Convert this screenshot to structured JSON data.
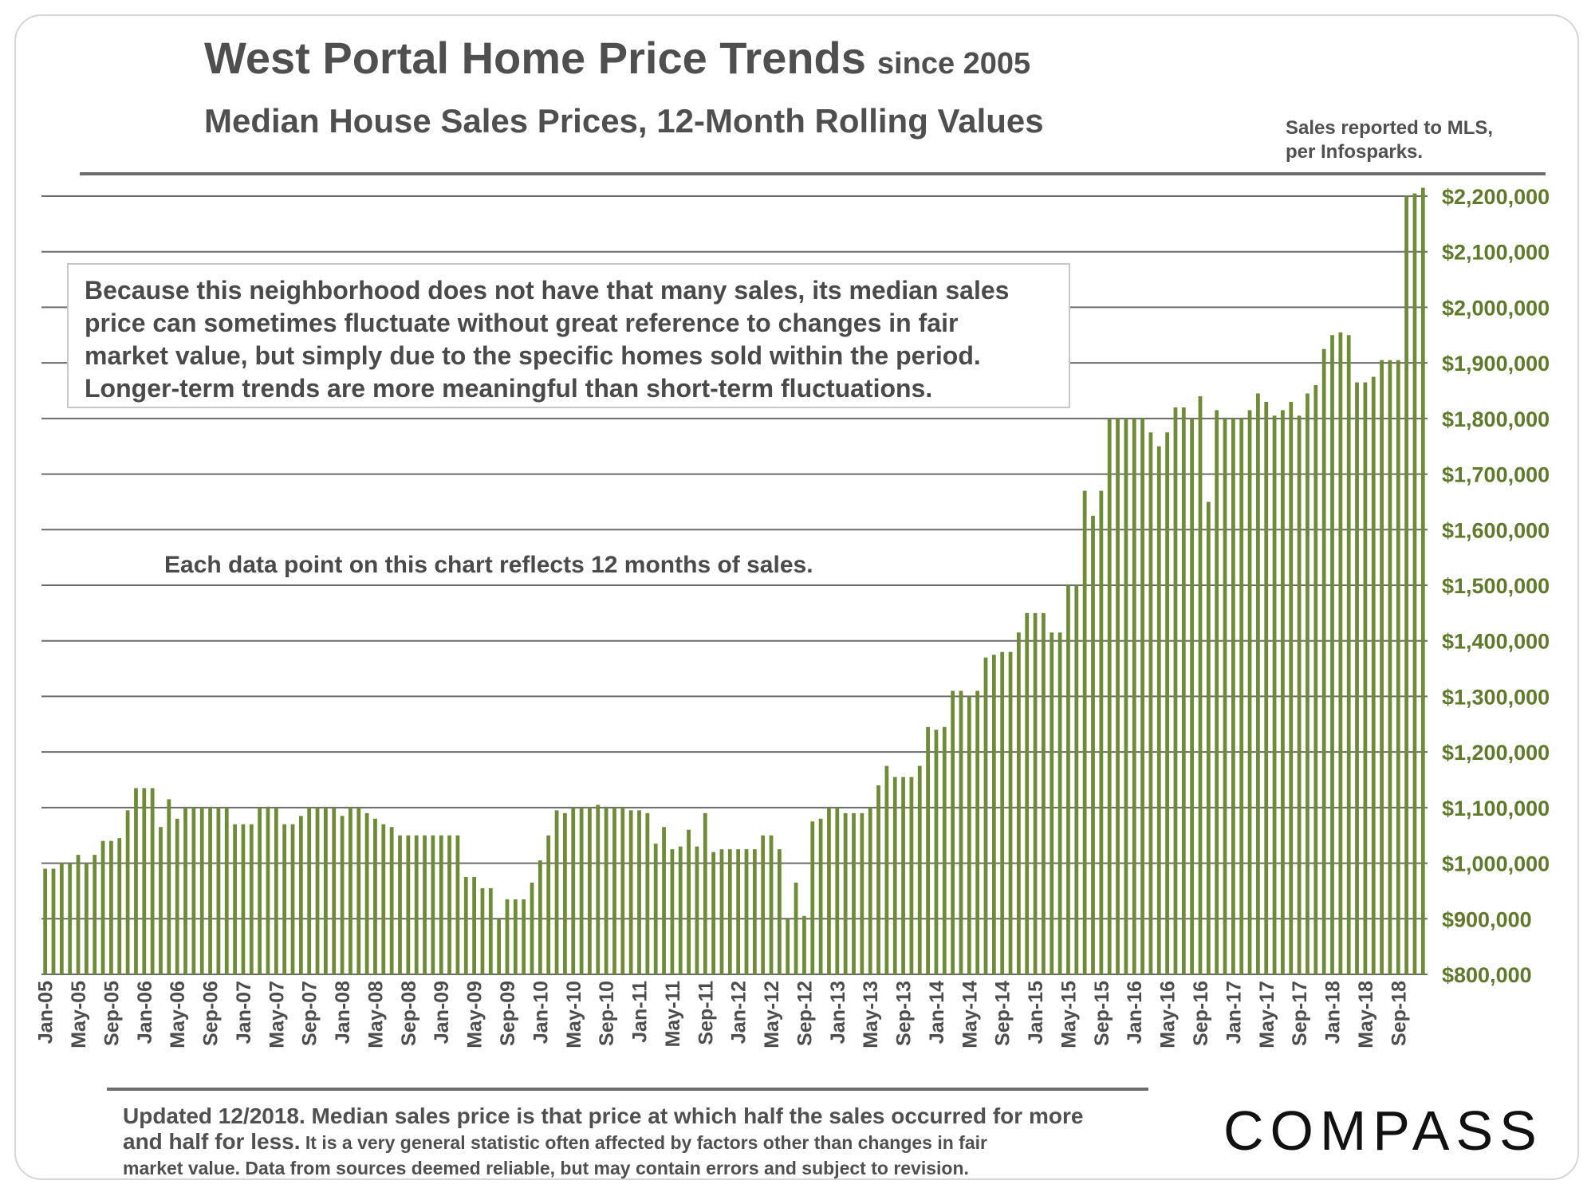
{
  "header": {
    "title": "West Portal Home Price Trends",
    "title_suffix": "since 2005",
    "subtitle": "Median House Sales Prices, 12-Month Rolling Values",
    "source_line1": "Sales reported to MLS,",
    "source_line2": "per Infosparks."
  },
  "notes": {
    "box_lines": [
      "Because this neighborhood does not have that many sales, its median sales",
      "price can sometimes fluctuate without great reference to changes in fair",
      "market value, but simply due to the specific homes sold within the period.",
      "Longer-term trends are more meaningful than short-term fluctuations."
    ],
    "each_point": "Each data point on this chart reflects 12 months of sales."
  },
  "footer": {
    "line1": "Updated 12/2018. Median sales price is that price at which half the sales occurred for more",
    "line2_a": "and half for less.",
    "line2_b": " It is a very general statistic often affected by factors other than changes in fair",
    "line3": "market value. Data from sources deemed reliable, but may contain errors and subject to revision."
  },
  "brand": {
    "name": "COMPASS"
  },
  "colors": {
    "bar": "#6e8b35",
    "axis_label": "#5f7a2a",
    "grid": "#6c6c6c",
    "text": "#4d4d4d"
  },
  "chart_data": {
    "type": "bar",
    "title": "Median House Sales Prices, 12-Month Rolling Values",
    "xlabel": "",
    "ylabel": "",
    "ylim": [
      800000,
      2200000
    ],
    "y_ticks": [
      800000,
      900000,
      1000000,
      1100000,
      1200000,
      1300000,
      1400000,
      1500000,
      1600000,
      1700000,
      1800000,
      1900000,
      2000000,
      2100000,
      2200000
    ],
    "y_tick_labels": [
      "$800,000",
      "$900,000",
      "$1,000,000",
      "$1,100,000",
      "$1,200,000",
      "$1,300,000",
      "$1,400,000",
      "$1,500,000",
      "$1,600,000",
      "$1,700,000",
      "$1,800,000",
      "$1,900,000",
      "$2,000,000",
      "$2,100,000",
      "$2,200,000"
    ],
    "x_tick_labels": [
      "Jan-05",
      "May-05",
      "Sep-05",
      "Jan-06",
      "May-06",
      "Sep-06",
      "Jan-07",
      "May-07",
      "Sep-07",
      "Jan-08",
      "May-08",
      "Sep-08",
      "Jan-09",
      "May-09",
      "Sep-09",
      "Jan-10",
      "May-10",
      "Sep-10",
      "Jan-11",
      "May-11",
      "Sep-11",
      "Jan-12",
      "May-12",
      "Sep-12",
      "Jan-13",
      "May-13",
      "Sep-13",
      "Jan-14",
      "May-14",
      "Sep-14",
      "Jan-15",
      "May-15",
      "Sep-15",
      "Jan-16",
      "May-16",
      "Sep-16",
      "Jan-17",
      "May-17",
      "Sep-17",
      "Jan-18",
      "May-18",
      "Sep-18"
    ],
    "x_tick_every": 4,
    "start_month": "Jan-05",
    "series": [
      {
        "name": "Median Sales Price (12-month rolling)",
        "values": [
          990000,
          990000,
          1000000,
          1000000,
          1015000,
          1000000,
          1015000,
          1040000,
          1040000,
          1045000,
          1095000,
          1135000,
          1135000,
          1135000,
          1065000,
          1115000,
          1080000,
          1100000,
          1100000,
          1100000,
          1100000,
          1100000,
          1100000,
          1070000,
          1070000,
          1070000,
          1100000,
          1100000,
          1100000,
          1070000,
          1070000,
          1085000,
          1100000,
          1100000,
          1100000,
          1100000,
          1085000,
          1100000,
          1100000,
          1090000,
          1080000,
          1070000,
          1065000,
          1050000,
          1050000,
          1050000,
          1050000,
          1050000,
          1050000,
          1050000,
          1050000,
          975000,
          975000,
          955000,
          955000,
          900000,
          935000,
          935000,
          935000,
          965000,
          1005000,
          1050000,
          1095000,
          1090000,
          1100000,
          1100000,
          1100000,
          1105000,
          1100000,
          1100000,
          1100000,
          1095000,
          1095000,
          1090000,
          1035000,
          1065000,
          1025000,
          1030000,
          1060000,
          1030000,
          1090000,
          1020000,
          1025000,
          1025000,
          1025000,
          1025000,
          1025000,
          1050000,
          1050000,
          1025000,
          900000,
          965000,
          905000,
          1075000,
          1080000,
          1100000,
          1100000,
          1090000,
          1090000,
          1090000,
          1100000,
          1140000,
          1175000,
          1155000,
          1155000,
          1155000,
          1175000,
          1245000,
          1240000,
          1245000,
          1310000,
          1310000,
          1300000,
          1310000,
          1370000,
          1375000,
          1380000,
          1380000,
          1415000,
          1450000,
          1450000,
          1450000,
          1415000,
          1415000,
          1500000,
          1500000,
          1670000,
          1625000,
          1670000,
          1800000,
          1800000,
          1800000,
          1800000,
          1800000,
          1775000,
          1750000,
          1775000,
          1820000,
          1820000,
          1800000,
          1840000,
          1650000,
          1815000,
          1800000,
          1800000,
          1800000,
          1815000,
          1845000,
          1830000,
          1805000,
          1815000,
          1830000,
          1805000,
          1845000,
          1860000,
          1925000,
          1950000,
          1955000,
          1950000,
          1865000,
          1865000,
          1875000,
          1905000,
          1905000,
          1905000,
          2200000,
          2205000,
          2215000
        ]
      }
    ]
  }
}
